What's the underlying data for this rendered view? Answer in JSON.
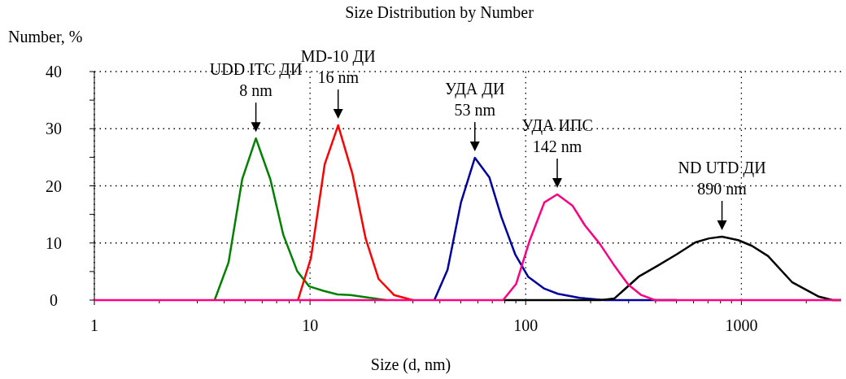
{
  "chart_data": {
    "type": "line",
    "title": "Size Distribution by Number",
    "xlabel": "Size (d, nm)",
    "ylabel": "Number, %",
    "log": "x",
    "grid": true,
    "marker": "none",
    "line_style": "solid",
    "xlim": [
      1,
      2900
    ],
    "ylim": [
      0,
      40
    ],
    "xticks": [
      1,
      {
        "value": 2,
        "label": null
      },
      {
        "value": 3,
        "label": null
      },
      {
        "value": 4,
        "label": null
      },
      {
        "value": 5,
        "label": null
      },
      {
        "value": 6,
        "label": null
      },
      {
        "value": 7,
        "label": null
      },
      {
        "value": 8,
        "label": null
      },
      {
        "value": 9,
        "label": null
      },
      10,
      {
        "value": 20,
        "label": null
      },
      {
        "value": 30,
        "label": null
      },
      {
        "value": 40,
        "label": null
      },
      {
        "value": 50,
        "label": null
      },
      {
        "value": 60,
        "label": null
      },
      {
        "value": 70,
        "label": null
      },
      {
        "value": 80,
        "label": null
      },
      {
        "value": 90,
        "label": null
      },
      100,
      {
        "value": 200,
        "label": null
      },
      {
        "value": 300,
        "label": null
      },
      {
        "value": 400,
        "label": null
      },
      {
        "value": 500,
        "label": null
      },
      {
        "value": 600,
        "label": null
      },
      {
        "value": 700,
        "label": null
      },
      {
        "value": 800,
        "label": null
      },
      {
        "value": 900,
        "label": null
      },
      1000,
      {
        "value": 2000,
        "label": null
      }
    ],
    "yticks": [
      0,
      {
        "value": 5,
        "label": null
      },
      10,
      {
        "value": 15,
        "label": null
      },
      20,
      {
        "value": 25,
        "label": null
      },
      30,
      {
        "value": 35,
        "label": null
      },
      40
    ],
    "series": [
      {
        "color": "#008000",
        "x": [
          3.61,
          4.19,
          4.85,
          5.61,
          6.55,
          7.52,
          8.71,
          9.91,
          11.6,
          13.4,
          15.4,
          22.5
        ],
        "values": [
          0,
          6.6,
          21.2,
          28.3,
          21.1,
          11.4,
          5.1,
          2.4,
          1.6,
          1.0,
          0.9,
          0
        ]
      },
      {
        "color": "#ff0000",
        "x": [
          8.79,
          10.1,
          11.7,
          13.5,
          15.7,
          18.1,
          20.8,
          24.5,
          29.9
        ],
        "values": [
          0,
          7.4,
          23.8,
          30.6,
          22.2,
          10.8,
          3.7,
          0.9,
          0
        ]
      },
      {
        "color": "#0000a0",
        "x": [
          37.7,
          43.4,
          50.1,
          58.1,
          67.8,
          77.2,
          89.4,
          102.6,
          122,
          141,
          178,
          231,
          500
        ],
        "values": [
          0,
          5.3,
          17.1,
          24.9,
          21.5,
          14.5,
          8.0,
          4.1,
          2.0,
          1.1,
          0.4,
          0,
          0
        ]
      },
      {
        "color": "#000000",
        "x": [
          79.2,
          223,
          258,
          334,
          408,
          501,
          612,
          708,
          813,
          966,
          1119,
          1330,
          1722,
          2290,
          2650,
          2900
        ],
        "values": [
          0,
          0,
          0.3,
          4.1,
          6.0,
          8.0,
          10.1,
          10.8,
          11.1,
          10.5,
          9.5,
          7.7,
          3.1,
          0.6,
          0,
          0
        ]
      },
      {
        "color": "#ff0080",
        "x": [
          1,
          78.5,
          90.2,
          104.5,
          122,
          140,
          165,
          188,
          221,
          258,
          299,
          343,
          397,
          2900
        ],
        "values": [
          0,
          0,
          2.8,
          10.5,
          17.1,
          18.5,
          16.5,
          13.1,
          9.8,
          6.0,
          2.7,
          0.9,
          0,
          0
        ]
      }
    ],
    "annotations": [
      {
        "text": "UDD ITC ДИ\n8 nm",
        "x": 5.61,
        "y": 28.3
      },
      {
        "text": "MD-10 ДИ\n16 nm",
        "x": 13.5,
        "y": 30.6
      },
      {
        "text": "УДА ДИ\n53 nm",
        "x": 58.1,
        "y": 24.9
      },
      {
        "text": "УДА ИПС\n142 nm",
        "x": 140,
        "y": 18.5
      },
      {
        "text": "ND UTD ДИ\n890 nm",
        "x": 813,
        "y": 11.1
      }
    ]
  }
}
